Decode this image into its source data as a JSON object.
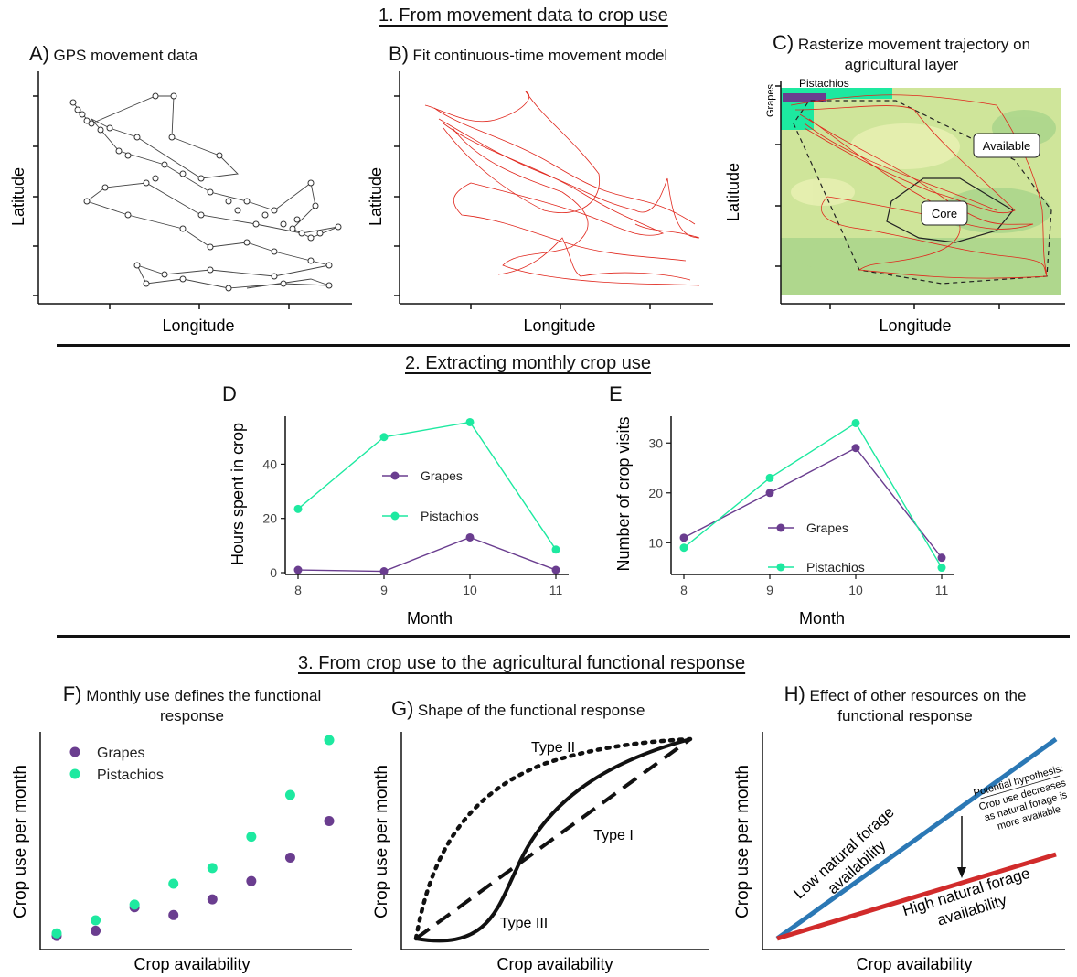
{
  "sections": {
    "s1": "1. From movement data to crop use",
    "s2": "2. Extracting monthly crop use",
    "s3": "3. From crop use to the agricultural functional response"
  },
  "panels": {
    "A": {
      "letter": "A)",
      "title": "GPS movement data",
      "xlabel": "Longitude",
      "ylabel": "Latitude"
    },
    "B": {
      "letter": "B)",
      "title": "Fit continuous-time movement model",
      "xlabel": "Longitude",
      "ylabel": "Latitude"
    },
    "C": {
      "letter": "C)",
      "title_line1": "Rasterize movement trajectory on",
      "title_line2": "agricultural layer",
      "xlabel": "Longitude",
      "ylabel": "Latitude",
      "labels": {
        "grapes": "Grapes",
        "pistachios": "Pistachios",
        "available": "Available",
        "core": "Core"
      }
    },
    "D": {
      "letter": "D",
      "xlabel": "Month",
      "ylabel": "Hours spent in crop"
    },
    "E": {
      "letter": "E",
      "xlabel": "Month",
      "ylabel": "Number of crop visits"
    },
    "F": {
      "letter": "F)",
      "title_line1": "Monthly use defines the functional",
      "title_line2": "response",
      "xlabel": "Crop availability",
      "ylabel": "Crop use per month"
    },
    "G": {
      "letter": "G)",
      "title": "Shape of the functional response",
      "xlabel": "Crop availability",
      "ylabel": "Crop use per month",
      "labels": {
        "type1": "Type I",
        "type2": "Type II",
        "type3": "Type III"
      }
    },
    "H": {
      "letter": "H)",
      "title_line1": "Effect of other resources on the",
      "title_line2": "functional response",
      "xlabel": "Crop availability",
      "ylabel": "Crop use per month",
      "low_line1": "Low natural forage",
      "low_line2": "availability",
      "high_line1": "High natural forage",
      "high_line2": "availability",
      "hyp_line1": "Potential hypothesis:",
      "hyp_line2": "Crop use decreases",
      "hyp_line3": "as natural forage is",
      "hyp_line4": "more available"
    }
  },
  "colors": {
    "grapes": "#6a3d8f",
    "pistachios": "#1de9a0",
    "track": "#e0261c",
    "low": "#2b78b5",
    "high": "#d12b2b"
  },
  "chart_data": [
    {
      "type": "line",
      "panel": "D",
      "x": [
        8,
        9,
        10,
        11
      ],
      "xlabel": "Month",
      "ylabel": "Hours spent in crop",
      "ylim": [
        0,
        57
      ],
      "yticks": [
        0,
        20,
        40
      ],
      "series": [
        {
          "name": "Grapes",
          "values": [
            1,
            0.5,
            13,
            1
          ]
        },
        {
          "name": "Pistachios",
          "values": [
            23.5,
            50,
            55.5,
            8.5
          ]
        }
      ],
      "legend": "center"
    },
    {
      "type": "line",
      "panel": "E",
      "x": [
        8,
        9,
        10,
        11
      ],
      "xlabel": "Month",
      "ylabel": "Number of crop visits",
      "ylim": [
        4,
        35
      ],
      "yticks": [
        10,
        20,
        30
      ],
      "series": [
        {
          "name": "Grapes",
          "values": [
            11,
            20,
            29,
            7
          ]
        },
        {
          "name": "Pistachios",
          "values": [
            9,
            23,
            34,
            5
          ]
        }
      ],
      "legend": "center"
    },
    {
      "type": "scatter",
      "panel": "F",
      "xlabel": "Crop availability",
      "ylabel": "Crop use per month",
      "series": [
        {
          "name": "Grapes",
          "x": [
            1,
            2,
            3,
            4,
            5,
            6,
            7,
            8
          ],
          "y": [
            0.5,
            1.5,
            6,
            4.5,
            7.5,
            11,
            15.5,
            22.5
          ]
        },
        {
          "name": "Pistachios",
          "x": [
            1,
            2,
            3,
            4,
            5,
            6,
            7,
            8
          ],
          "y": [
            1,
            3.5,
            6.5,
            10.5,
            13.5,
            19.5,
            27.5,
            38
          ]
        }
      ],
      "legend": "top-left"
    }
  ]
}
